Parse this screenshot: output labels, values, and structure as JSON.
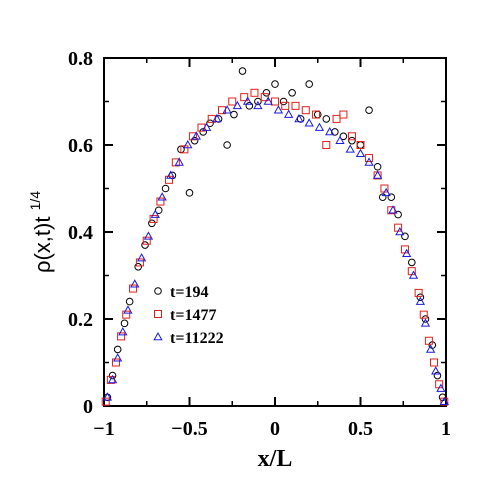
{
  "chart_data": {
    "type": "scatter",
    "xlabel": "x/L",
    "ylabel": "ρ(x,t)t",
    "ylabel_exponent": "1/4",
    "xlim": [
      -1,
      1
    ],
    "ylim": [
      0,
      0.8
    ],
    "x_ticks": [
      "−1",
      "−0.5",
      "0",
      "0.5",
      "1"
    ],
    "y_ticks": [
      "0",
      "0.2",
      "0.4",
      "0.6",
      "0.8"
    ],
    "grid": false,
    "legend_position": "left-lower",
    "series": [
      {
        "name": "t=194",
        "marker": "circle",
        "color": "#000000",
        "points": [
          [
            -0.98,
            0.02
          ],
          [
            -0.95,
            0.07
          ],
          [
            -0.92,
            0.13
          ],
          [
            -0.88,
            0.19
          ],
          [
            -0.85,
            0.24
          ],
          [
            -0.8,
            0.32
          ],
          [
            -0.76,
            0.37
          ],
          [
            -0.72,
            0.42
          ],
          [
            -0.68,
            0.45
          ],
          [
            -0.64,
            0.5
          ],
          [
            -0.6,
            0.53
          ],
          [
            -0.55,
            0.59
          ],
          [
            -0.5,
            0.49
          ],
          [
            -0.47,
            0.61
          ],
          [
            -0.42,
            0.63
          ],
          [
            -0.38,
            0.65
          ],
          [
            -0.33,
            0.66
          ],
          [
            -0.28,
            0.6
          ],
          [
            -0.24,
            0.67
          ],
          [
            -0.19,
            0.77
          ],
          [
            -0.15,
            0.69
          ],
          [
            -0.1,
            0.7
          ],
          [
            -0.05,
            0.72
          ],
          [
            0.0,
            0.74
          ],
          [
            0.05,
            0.7
          ],
          [
            0.1,
            0.72
          ],
          [
            0.15,
            0.66
          ],
          [
            0.2,
            0.74
          ],
          [
            0.25,
            0.67
          ],
          [
            0.3,
            0.66
          ],
          [
            0.35,
            0.63
          ],
          [
            0.4,
            0.62
          ],
          [
            0.45,
            0.61
          ],
          [
            0.5,
            0.6
          ],
          [
            0.55,
            0.68
          ],
          [
            0.6,
            0.55
          ],
          [
            0.63,
            0.48
          ],
          [
            0.68,
            0.48
          ],
          [
            0.72,
            0.44
          ],
          [
            0.76,
            0.39
          ],
          [
            0.8,
            0.33
          ],
          [
            0.85,
            0.25
          ],
          [
            0.88,
            0.2
          ],
          [
            0.92,
            0.14
          ],
          [
            0.95,
            0.07
          ],
          [
            0.98,
            0.02
          ]
        ]
      },
      {
        "name": "t=1477",
        "marker": "square",
        "color": "#e0201a",
        "points": [
          [
            -0.99,
            0.01
          ],
          [
            -0.96,
            0.06
          ],
          [
            -0.93,
            0.1
          ],
          [
            -0.9,
            0.16
          ],
          [
            -0.87,
            0.21
          ],
          [
            -0.83,
            0.27
          ],
          [
            -0.79,
            0.33
          ],
          [
            -0.75,
            0.38
          ],
          [
            -0.71,
            0.43
          ],
          [
            -0.67,
            0.47
          ],
          [
            -0.62,
            0.52
          ],
          [
            -0.58,
            0.56
          ],
          [
            -0.53,
            0.59
          ],
          [
            -0.48,
            0.62
          ],
          [
            -0.43,
            0.64
          ],
          [
            -0.37,
            0.66
          ],
          [
            -0.31,
            0.68
          ],
          [
            -0.25,
            0.7
          ],
          [
            -0.18,
            0.71
          ],
          [
            -0.12,
            0.72
          ],
          [
            -0.06,
            0.71
          ],
          [
            0.0,
            0.7
          ],
          [
            0.06,
            0.69
          ],
          [
            0.12,
            0.69
          ],
          [
            0.18,
            0.68
          ],
          [
            0.24,
            0.67
          ],
          [
            0.3,
            0.6
          ],
          [
            0.36,
            0.66
          ],
          [
            0.4,
            0.67
          ],
          [
            0.45,
            0.62
          ],
          [
            0.5,
            0.6
          ],
          [
            0.55,
            0.57
          ],
          [
            0.6,
            0.53
          ],
          [
            0.64,
            0.5
          ],
          [
            0.68,
            0.45
          ],
          [
            0.72,
            0.41
          ],
          [
            0.76,
            0.36
          ],
          [
            0.8,
            0.31
          ],
          [
            0.84,
            0.26
          ],
          [
            0.87,
            0.21
          ],
          [
            0.9,
            0.15
          ],
          [
            0.93,
            0.1
          ],
          [
            0.96,
            0.05
          ],
          [
            0.99,
            0.01
          ]
        ]
      },
      {
        "name": "t=11222",
        "marker": "triangle",
        "color": "#1a1ae0",
        "points": [
          [
            -0.98,
            0.02
          ],
          [
            -0.95,
            0.06
          ],
          [
            -0.92,
            0.11
          ],
          [
            -0.89,
            0.17
          ],
          [
            -0.86,
            0.22
          ],
          [
            -0.82,
            0.28
          ],
          [
            -0.78,
            0.34
          ],
          [
            -0.74,
            0.39
          ],
          [
            -0.7,
            0.44
          ],
          [
            -0.66,
            0.48
          ],
          [
            -0.61,
            0.53
          ],
          [
            -0.56,
            0.56
          ],
          [
            -0.51,
            0.6
          ],
          [
            -0.46,
            0.62
          ],
          [
            -0.4,
            0.64
          ],
          [
            -0.34,
            0.66
          ],
          [
            -0.28,
            0.68
          ],
          [
            -0.22,
            0.69
          ],
          [
            -0.16,
            0.7
          ],
          [
            -0.1,
            0.69
          ],
          [
            -0.04,
            0.7
          ],
          [
            0.02,
            0.68
          ],
          [
            0.08,
            0.67
          ],
          [
            0.14,
            0.66
          ],
          [
            0.2,
            0.65
          ],
          [
            0.26,
            0.64
          ],
          [
            0.32,
            0.63
          ],
          [
            0.38,
            0.61
          ],
          [
            0.44,
            0.59
          ],
          [
            0.5,
            0.58
          ],
          [
            0.55,
            0.56
          ],
          [
            0.6,
            0.53
          ],
          [
            0.65,
            0.49
          ],
          [
            0.69,
            0.45
          ],
          [
            0.73,
            0.4
          ],
          [
            0.77,
            0.35
          ],
          [
            0.81,
            0.3
          ],
          [
            0.85,
            0.24
          ],
          [
            0.88,
            0.19
          ],
          [
            0.91,
            0.13
          ],
          [
            0.94,
            0.08
          ],
          [
            0.97,
            0.04
          ],
          [
            0.99,
            0.01
          ]
        ]
      }
    ]
  }
}
